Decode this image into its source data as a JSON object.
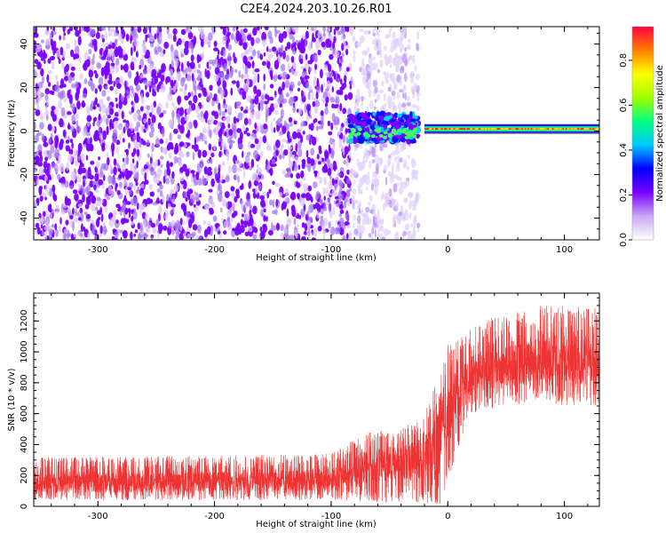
{
  "title": "C2E4.2024.203.10.26.R01",
  "chart_data": [
    {
      "type": "heatmap",
      "xlabel": "Height of straight line (km)",
      "ylabel": "Frequency (Hz)",
      "xlim": [
        -355,
        130
      ],
      "ylim": [
        -50,
        48
      ],
      "xticks": [
        -300,
        -200,
        -100,
        0,
        100
      ],
      "xtick_labels": [
        "-300",
        "-200",
        "-100",
        "0",
        "100"
      ],
      "yticks": [
        -40,
        -20,
        0,
        20,
        40
      ],
      "ytick_labels": [
        "-40",
        "-20",
        "0",
        "20",
        "40"
      ],
      "colorbar": {
        "label": "Normalized spectral amplitude",
        "range": [
          0,
          0.95
        ],
        "ticks": [
          0.0,
          0.2,
          0.4,
          0.6,
          0.8
        ],
        "tick_labels": [
          "0.0",
          "0.2",
          "0.4",
          "0.6",
          "0.8"
        ],
        "colormap": "rainbow",
        "colors": [
          "#ffffff",
          "#c9a8f5",
          "#7a00ff",
          "#0000ff",
          "#00c8ff",
          "#00ff80",
          "#a0ff00",
          "#ffff00",
          "#ff8000",
          "#ff0040"
        ]
      },
      "regions": [
        {
          "x_range": [
            -355,
            -83
          ],
          "freq_range": [
            -50,
            48
          ],
          "level": 0.15,
          "pattern": "dense noise"
        },
        {
          "x_range": [
            -83,
            -25
          ],
          "freq_range": [
            -50,
            48
          ],
          "level": 0.05,
          "pattern": "sparse noise"
        },
        {
          "x_range": [
            -85,
            -25
          ],
          "freq_range": [
            -5,
            8
          ],
          "level": 0.35,
          "pattern": "broadband onset"
        },
        {
          "x_range": [
            -20,
            130
          ],
          "freq_range": [
            0,
            2
          ],
          "level": 0.9,
          "pattern": "narrow carrier line"
        }
      ]
    },
    {
      "type": "line",
      "xlabel": "Height of straight line (km)",
      "ylabel": "SNR (10 * v/v)",
      "xlim": [
        -355,
        130
      ],
      "ylim": [
        0,
        1380
      ],
      "xticks": [
        -300,
        -200,
        -100,
        0,
        100
      ],
      "xtick_labels": [
        "-300",
        "-200",
        "-100",
        "0",
        "100"
      ],
      "yticks": [
        0,
        200,
        400,
        600,
        800,
        1000,
        1200
      ],
      "ytick_labels": [
        "0",
        "200",
        "400",
        "600",
        "800",
        "1000",
        "1200"
      ],
      "color": "#ee3333",
      "envelope": {
        "x": [
          -355,
          -300,
          -200,
          -100,
          -70,
          -40,
          -20,
          -10,
          -5,
          0,
          10,
          20,
          30,
          50,
          80,
          100,
          130
        ],
        "low": [
          40,
          40,
          40,
          40,
          30,
          20,
          20,
          10,
          20,
          150,
          400,
          600,
          620,
          650,
          680,
          650,
          650
        ],
        "high": [
          320,
          320,
          330,
          340,
          480,
          500,
          600,
          800,
          900,
          1050,
          1080,
          1150,
          1200,
          1250,
          1300,
          1300,
          1280
        ],
        "mean": [
          150,
          150,
          160,
          170,
          260,
          280,
          320,
          400,
          500,
          600,
          750,
          850,
          880,
          900,
          950,
          950,
          950
        ]
      }
    }
  ]
}
